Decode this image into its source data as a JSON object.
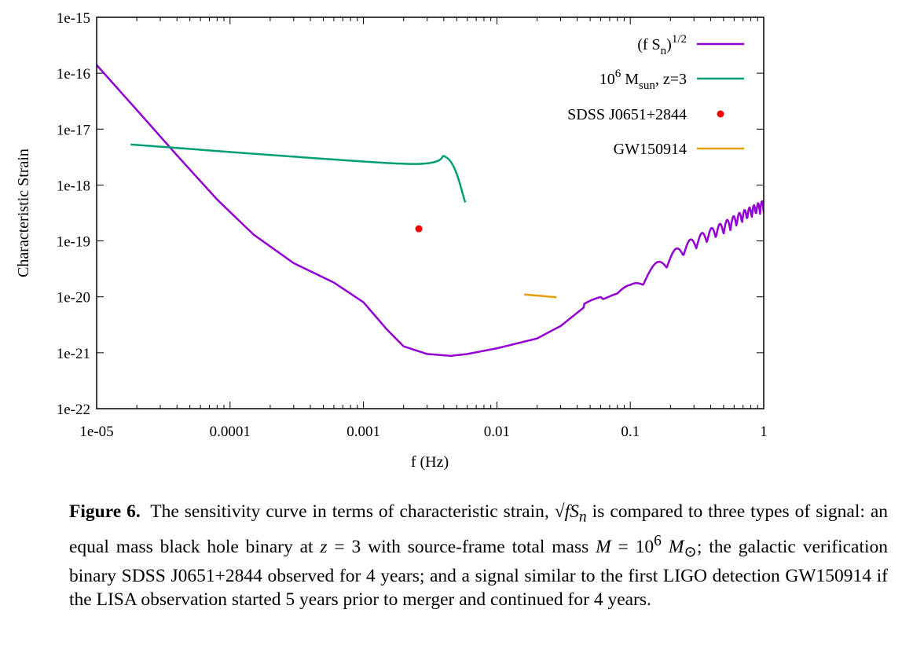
{
  "chart_data": {
    "type": "line",
    "xlabel": "f (Hz)",
    "ylabel": "Characteristic Strain",
    "x_scale": "log",
    "y_scale": "log",
    "xlim": [
      1e-05,
      1
    ],
    "ylim": [
      1e-22,
      1e-15
    ],
    "x_ticks": [
      "1e-05",
      "0.0001",
      "0.001",
      "0.01",
      "0.1",
      "1"
    ],
    "y_ticks": [
      "1e-22",
      "1e-21",
      "1e-20",
      "1e-19",
      "1e-18",
      "1e-17",
      "1e-16",
      "1e-15"
    ],
    "grid": false,
    "legend_position": "top-right",
    "series": [
      {
        "name": "(f S_n)^1/2",
        "color": "#9400d3",
        "style": "line",
        "x": [
          1e-05,
          2e-05,
          4e-05,
          8e-05,
          0.00015,
          0.0003,
          0.0006,
          0.001,
          0.0015,
          0.002,
          0.003,
          0.0045,
          0.006,
          0.01,
          0.02,
          0.03,
          0.045,
          0.06,
          0.08,
          0.1,
          0.13,
          0.18,
          0.25,
          0.35,
          0.5,
          0.7,
          1.0
        ],
        "y": [
          1.4e-16,
          2.2e-17,
          3.4e-18,
          5.5e-19,
          1.3e-19,
          4e-20,
          1.8e-20,
          8e-21,
          2.6e-21,
          1.3e-21,
          9.5e-22,
          8.8e-22,
          9.5e-22,
          1.2e-21,
          1.8e-21,
          3e-21,
          6.5e-21,
          1.2e-20,
          1e-20,
          1.3e-20,
          2.3e-20,
          4e-20,
          7e-20,
          1.1e-19,
          1.7e-19,
          2.7e-19,
          4.2e-19
        ],
        "oscillation_start_hz": 0.045
      },
      {
        "name": "10^6 M_sun, z=3",
        "color": "#009e73",
        "style": "line",
        "x": [
          1.8e-05,
          0.002,
          0.0042,
          0.0058
        ],
        "y": [
          5.3e-18,
          2.4e-18,
          3.1e-18,
          4.9e-19
        ]
      },
      {
        "name": "SDSS J0651+2844",
        "color": "#ff0000",
        "style": "point",
        "x": [
          0.0026
        ],
        "y": [
          1.65e-19
        ]
      },
      {
        "name": "GW150914",
        "color": "#e69f00",
        "style": "line",
        "x": [
          0.016,
          0.028
        ],
        "y": [
          1.1e-20,
          9.8e-21
        ]
      }
    ]
  },
  "legend": {
    "items": [
      {
        "base": "(f S",
        "sub": "n",
        "tail": ")",
        "sup": "1/2",
        "color": "#9400d3",
        "style": "line"
      },
      {
        "base": "10",
        "sup": "6",
        "mid": " M",
        "sub": "sun",
        "tail": ", z=3",
        "color": "#009e73",
        "style": "line"
      },
      {
        "base": "SDSS J0651+2844",
        "color": "#ff0000",
        "style": "point"
      },
      {
        "base": "GW150914",
        "color": "#e69f00",
        "style": "line"
      }
    ]
  },
  "caption": {
    "label": "Figure 6.",
    "text_1": "The sensitivity curve in terms of characteristic strain, ",
    "math_1": "√fS",
    "math_1_sub": "n",
    "text_2": " is compared to three types of signal: an equal mass black hole binary at ",
    "math_2": "z",
    "text_3": " = 3 with source-frame total mass ",
    "math_3": "M",
    "text_4": " = 10",
    "math_4_sup": "6",
    "math_5": "M",
    "math_5_sub": "⊙",
    "text_5": "; the galactic verification binary SDSS J0651+2844 observed for 4 years; and a signal similar to the first LIGO detection GW150914 if the LISA observation started 5 years prior to merger and continued for 4 years."
  }
}
